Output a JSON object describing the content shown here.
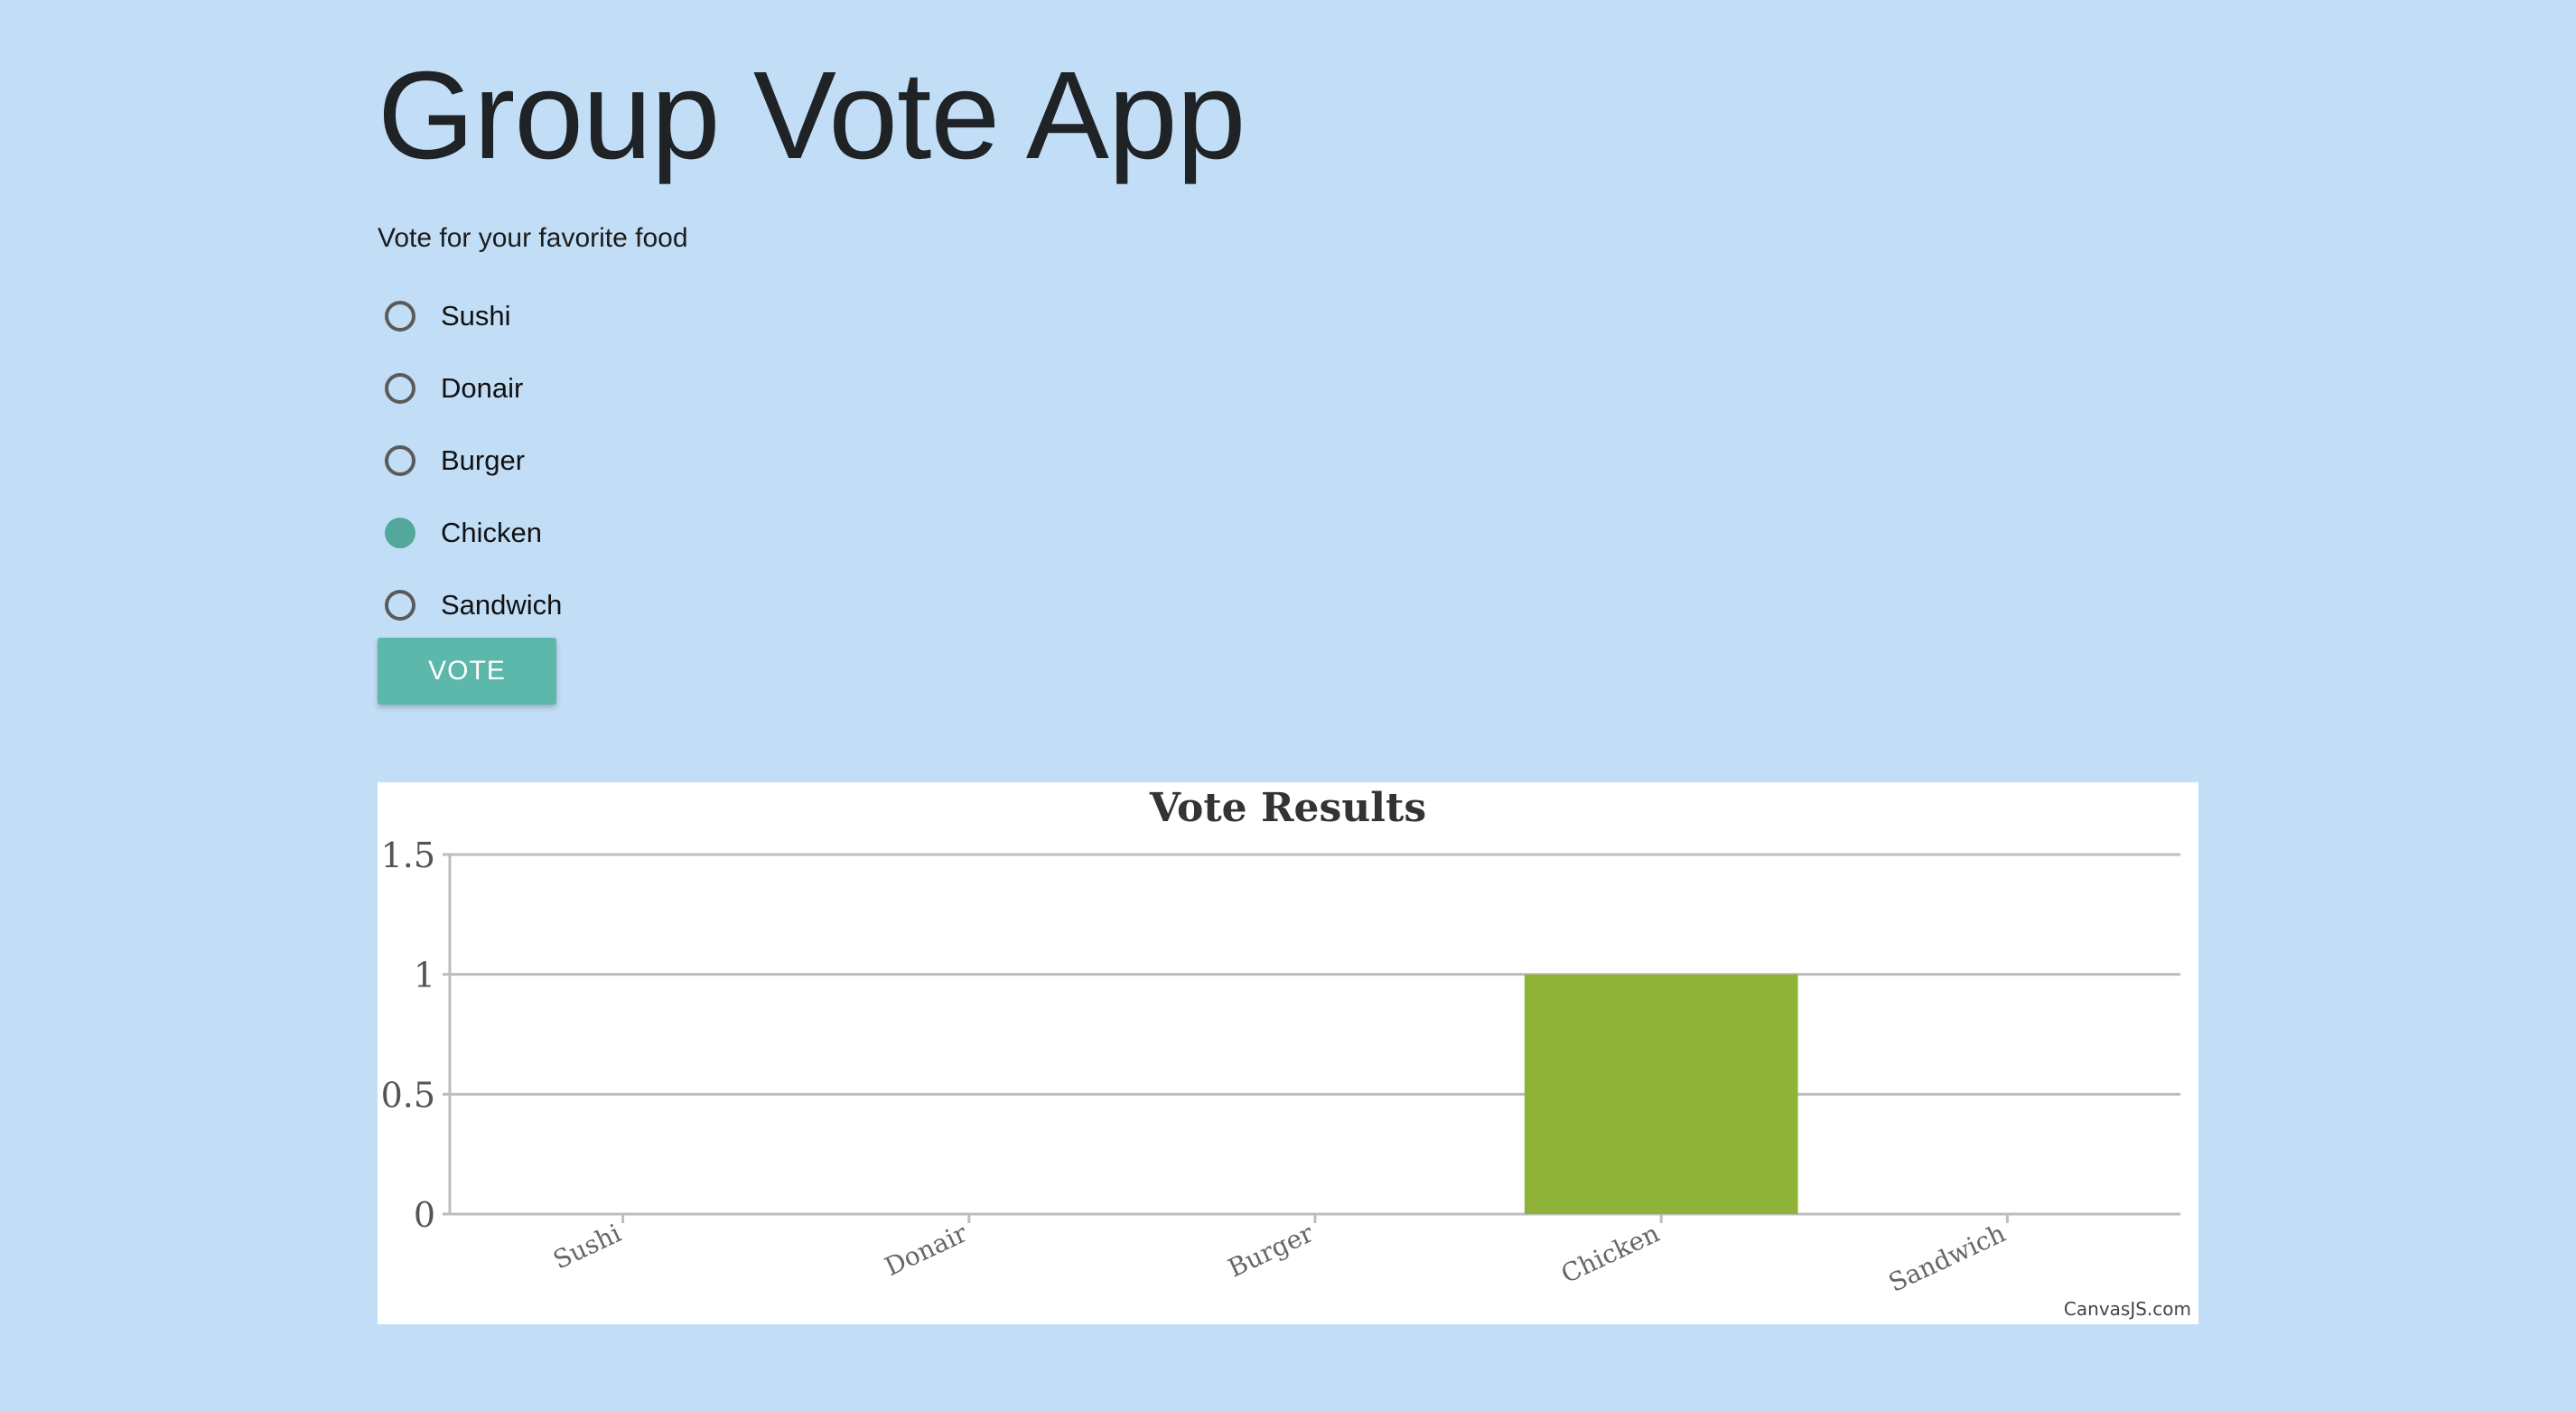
{
  "app": {
    "title": "Group Vote App",
    "prompt": "Vote for your favorite food"
  },
  "options": [
    {
      "label": "Sushi",
      "checked": false
    },
    {
      "label": "Donair",
      "checked": false
    },
    {
      "label": "Burger",
      "checked": false
    },
    {
      "label": "Chicken",
      "checked": true
    },
    {
      "label": "Sandwich",
      "checked": false
    }
  ],
  "vote_button": {
    "label": "VOTE"
  },
  "colors": {
    "background": "#c2ddf6",
    "accent": "#5cb8aa",
    "radio_checked": "#53a89b",
    "bar": "#8fb339"
  },
  "chart_data": {
    "type": "bar",
    "title": "Vote Results",
    "categories": [
      "Sushi",
      "Donair",
      "Burger",
      "Chicken",
      "Sandwich"
    ],
    "values": [
      0,
      0,
      0,
      1,
      0
    ],
    "ylim": [
      0,
      1.5
    ],
    "yticks": [
      "0",
      "0.5",
      "1",
      "1.5"
    ],
    "ytick_values": [
      0,
      0.5,
      1,
      1.5
    ],
    "grid": true,
    "credit": "CanvasJS.com"
  }
}
